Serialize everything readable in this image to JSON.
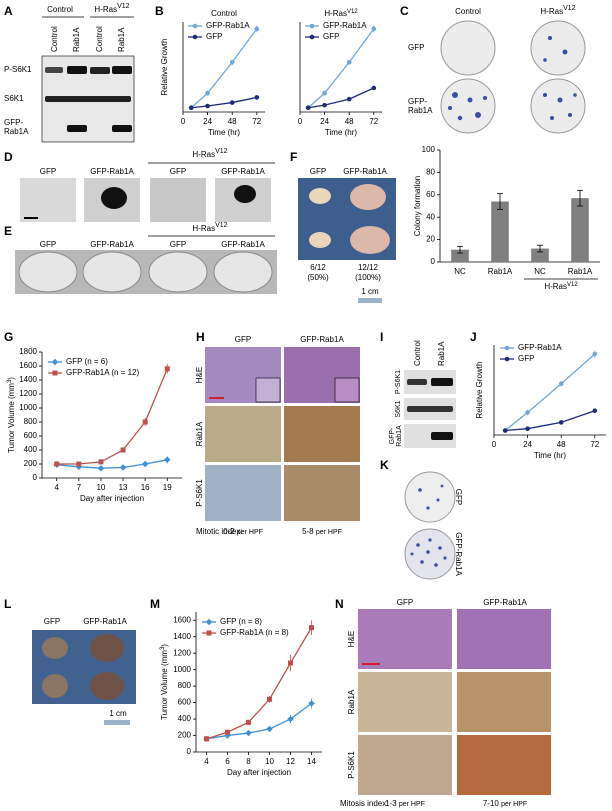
{
  "panels": {
    "A": {
      "letter": "A",
      "groups": [
        "Control",
        {
          "text": "H-Ras",
          "sup": "V12"
        }
      ],
      "lanes": [
        "Control",
        "Rab1A",
        "Control",
        "Rab1A"
      ],
      "rows": [
        "P-S6K1",
        "S6K1",
        [
          "GFP-",
          "Rab1A"
        ]
      ]
    },
    "B": {
      "letter": "B"
    },
    "C": {
      "letter": "C",
      "columns": [
        "Control",
        {
          "text": "H-Ras",
          "sup": "V12"
        }
      ],
      "rows": [
        "GFP",
        [
          "GFP-",
          "Rab1A"
        ]
      ]
    },
    "D": {
      "letter": "D",
      "labels": [
        "GFP",
        "GFP-Rab1A",
        "GFP",
        "GFP-Rab1A"
      ],
      "group": {
        "text": "H-Ras",
        "sup": "V12"
      }
    },
    "E": {
      "letter": "E",
      "labels": [
        "GFP",
        "GFP-Rab1A",
        "GFP",
        "GFP-Rab1A"
      ],
      "group": {
        "text": "H-Ras",
        "sup": "V12"
      }
    },
    "F": {
      "letter": "F",
      "labels": [
        "GFP",
        "GFP-Rab1A"
      ],
      "counts": [
        [
          "6/12",
          "(50%)"
        ],
        [
          "12/12",
          "(100%)"
        ]
      ],
      "scale": "1 cm"
    },
    "G": {
      "letter": "G"
    },
    "H": {
      "letter": "H",
      "columns": [
        "GFP",
        "GFP-Rab1A"
      ],
      "rows": [
        "H&E",
        "Rab1A",
        "P-S6K1"
      ],
      "index_label": "Mitotic index:",
      "index": [
        [
          "0-2",
          "per HPF"
        ],
        [
          "5-8",
          "per HPF"
        ]
      ]
    },
    "I": {
      "letter": "I",
      "lanes": [
        "Control",
        "Rab1A"
      ],
      "rows": [
        "P-S6K1",
        "S6K1",
        [
          "GFP-",
          "Rab1A"
        ]
      ]
    },
    "J": {
      "letter": "J"
    },
    "K": {
      "letter": "K",
      "rows": [
        "GFP",
        "GFP-Rab1A"
      ]
    },
    "L": {
      "letter": "L",
      "labels": [
        "GFP",
        "GFP-Rab1A"
      ],
      "scale": "1 cm"
    },
    "M": {
      "letter": "M"
    },
    "N": {
      "letter": "N",
      "columns": [
        "GFP",
        "GFP-Rab1A"
      ],
      "rows": [
        "H&E",
        "Rab1A",
        "P-S6K1"
      ],
      "index_label": "Mitosis index:",
      "index": [
        [
          "1-3",
          "per HPF"
        ],
        [
          "7-10",
          "per HPF"
        ]
      ]
    }
  },
  "chart_data": [
    {
      "type": "line",
      "title": "Control",
      "ylabel": "Relative Growth",
      "xlabel": "Time (hr)",
      "x": [
        8,
        24,
        48,
        72
      ],
      "xlim": [
        0,
        80
      ],
      "xticks": [
        0,
        24,
        48,
        72
      ],
      "ylim": [
        0,
        1.05
      ],
      "legend": "upper left",
      "series": [
        {
          "name": "GFP-Rab1A",
          "color": "#6fa8dc",
          "marker": "circle",
          "values": [
            0.05,
            0.22,
            0.58,
            0.97
          ],
          "errors": [
            0.01,
            0.03,
            0.03,
            0.04
          ]
        },
        {
          "name": "GFP",
          "color": "#1f2a7a",
          "marker": "circle",
          "values": [
            0.05,
            0.07,
            0.11,
            0.17
          ],
          "errors": [
            0.01,
            0.01,
            0.01,
            0.01
          ]
        }
      ]
    },
    {
      "type": "line",
      "title": {
        "text": "H-Ras",
        "sup": "V12"
      },
      "xlabel": "Time (hr)",
      "x": [
        8,
        24,
        48,
        72
      ],
      "xlim": [
        0,
        80
      ],
      "xticks": [
        0,
        24,
        48,
        72
      ],
      "ylim": [
        0,
        1.05
      ],
      "legend": "upper left",
      "series": [
        {
          "name": "GFP-Rab1A",
          "color": "#6fa8dc",
          "marker": "circle",
          "values": [
            0.05,
            0.22,
            0.58,
            0.97
          ],
          "errors": [
            0.01,
            0.03,
            0.03,
            0.04
          ]
        },
        {
          "name": "GFP",
          "color": "#1f2a7a",
          "marker": "circle",
          "values": [
            0.05,
            0.08,
            0.15,
            0.28
          ],
          "errors": [
            0.01,
            0.01,
            0.01,
            0.02
          ]
        }
      ]
    },
    {
      "type": "bar",
      "ylabel": "Colony formation",
      "categories": [
        "NC",
        "Rab1A",
        "NC",
        "Rab1A"
      ],
      "values": [
        11,
        54,
        12,
        57
      ],
      "errors": [
        3,
        7,
        3,
        7
      ],
      "color": "#808080",
      "ylim": [
        0,
        100
      ],
      "yticks": [
        0,
        20,
        40,
        60,
        80,
        100
      ],
      "group_label": {
        "text": "H-Ras",
        "sup": "V12"
      }
    },
    {
      "type": "line",
      "ylabel": {
        "text": "Tumor Volume (mm",
        "sup": "3",
        "end": ")"
      },
      "xlabel": "Day after injection",
      "x": [
        4,
        7,
        10,
        13,
        16,
        19
      ],
      "xlim": [
        2,
        21
      ],
      "xticks": [
        4,
        7,
        10,
        13,
        16,
        19
      ],
      "ylim": [
        0,
        1800
      ],
      "yticks": [
        0,
        200,
        400,
        600,
        800,
        1000,
        1200,
        1400,
        1600,
        1800
      ],
      "legend": "upper left",
      "series": [
        {
          "name": "GFP (n = 6)",
          "color": "#3d8fd6",
          "marker": "diamond",
          "values": [
            190,
            160,
            140,
            150,
            200,
            260
          ],
          "errors": [
            30,
            25,
            20,
            20,
            30,
            50
          ]
        },
        {
          "name": "GFP-Rab1A (n = 12)",
          "color": "#c0504d",
          "marker": "square",
          "values": [
            200,
            200,
            230,
            400,
            800,
            1560
          ],
          "errors": [
            30,
            25,
            30,
            40,
            60,
            70
          ]
        }
      ]
    },
    {
      "type": "line",
      "ylabel": "Relative Growth",
      "xlabel": "Time (hr)",
      "x": [
        8,
        24,
        48,
        72
      ],
      "xlim": [
        0,
        80
      ],
      "xticks": [
        0,
        24,
        48,
        72
      ],
      "ylim": [
        0,
        1.0
      ],
      "legend": "upper left",
      "series": [
        {
          "name": "GFP-Rab1A",
          "color": "#6fa8dc",
          "marker": "circle",
          "values": [
            0.05,
            0.25,
            0.57,
            0.9
          ],
          "errors": [
            0.01,
            0.03,
            0.03,
            0.04
          ]
        },
        {
          "name": "GFP",
          "color": "#1f2a7a",
          "marker": "circle",
          "values": [
            0.05,
            0.07,
            0.14,
            0.27
          ],
          "errors": [
            0.01,
            0.01,
            0.01,
            0.02
          ]
        }
      ]
    },
    {
      "type": "line",
      "ylabel": {
        "text": "Tumor Volume (mm",
        "sup": "3",
        "end": ")"
      },
      "xlabel": "Day after injection",
      "x": [
        4,
        6,
        8,
        10,
        12,
        14
      ],
      "xlim": [
        3,
        15
      ],
      "xticks": [
        4,
        6,
        8,
        10,
        12,
        14
      ],
      "ylim": [
        0,
        1700
      ],
      "yticks": [
        0,
        200,
        400,
        600,
        800,
        1000,
        1200,
        1400,
        1600
      ],
      "legend": "upper left",
      "series": [
        {
          "name": "GFP (n = 8)",
          "color": "#3d8fd6",
          "marker": "diamond",
          "values": [
            160,
            200,
            230,
            280,
            400,
            590
          ],
          "errors": [
            20,
            20,
            25,
            30,
            50,
            60
          ]
        },
        {
          "name": "GFP-Rab1A (n = 8)",
          "color": "#c0504d",
          "marker": "square",
          "values": [
            160,
            240,
            360,
            640,
            1080,
            1510
          ],
          "errors": [
            20,
            25,
            30,
            40,
            100,
            90
          ]
        }
      ]
    }
  ]
}
